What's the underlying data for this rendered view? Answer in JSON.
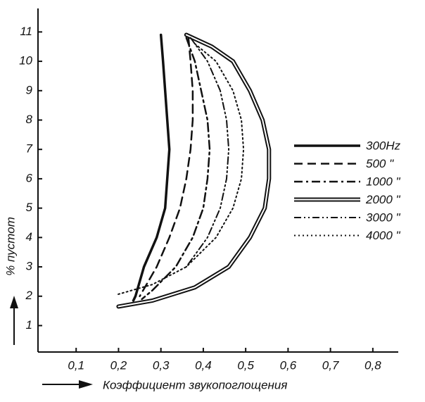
{
  "chart_data": {
    "type": "line",
    "x_label": "Коэффициент звукопоглощения",
    "y_label": "% пустот",
    "xlim": [
      0.01,
      0.86
    ],
    "ylim": [
      0.1,
      11.8
    ],
    "xticks": [
      {
        "value": 0.1,
        "label": "0,1"
      },
      {
        "value": 0.2,
        "label": "0,2"
      },
      {
        "value": 0.3,
        "label": "0,3"
      },
      {
        "value": 0.4,
        "label": "0,4"
      },
      {
        "value": 0.5,
        "label": "0,5"
      },
      {
        "value": 0.6,
        "label": "0,6"
      },
      {
        "value": 0.7,
        "label": "0,7"
      },
      {
        "value": 0.8,
        "label": "0,8"
      }
    ],
    "yticks": [
      1,
      2,
      3,
      4,
      5,
      6,
      7,
      8,
      9,
      10,
      11
    ],
    "series": [
      {
        "name": "300Hz",
        "color": "#111111",
        "line_style": "solid",
        "x": [
          0.3,
          0.305,
          0.31,
          0.315,
          0.32,
          0.315,
          0.31,
          0.29,
          0.26,
          0.24,
          0.235
        ],
        "values": [
          10.9,
          10.0,
          9.0,
          8.0,
          7.0,
          6.0,
          5.0,
          4.0,
          3.0,
          2.0,
          1.85
        ]
      },
      {
        "name": "500 \"",
        "color": "#111111",
        "line_style": "dashed",
        "x": [
          0.365,
          0.37,
          0.375,
          0.375,
          0.37,
          0.36,
          0.345,
          0.32,
          0.29,
          0.25
        ],
        "values": [
          10.8,
          10.0,
          9.0,
          8.0,
          7.0,
          6.0,
          5.0,
          4.0,
          3.0,
          2.0
        ]
      },
      {
        "name": "1000 \"",
        "color": "#111111",
        "line_style": "dashdot",
        "x": [
          0.36,
          0.38,
          0.395,
          0.41,
          0.415,
          0.41,
          0.4,
          0.375,
          0.335,
          0.28,
          0.255
        ],
        "values": [
          10.8,
          10.0,
          9.0,
          8.0,
          7.0,
          6.0,
          5.0,
          4.0,
          3.0,
          2.2,
          1.9
        ]
      },
      {
        "name": "2000 \"",
        "color": "#111111",
        "line_style": "double",
        "x": [
          0.36,
          0.42,
          0.47,
          0.51,
          0.54,
          0.555,
          0.555,
          0.545,
          0.51,
          0.46,
          0.38,
          0.28,
          0.2
        ],
        "values": [
          10.9,
          10.5,
          10.0,
          9.0,
          8.0,
          7.0,
          6.0,
          5.0,
          4.0,
          3.0,
          2.3,
          1.85,
          1.65
        ]
      },
      {
        "name": "3000 \"",
        "color": "#111111",
        "line_style": "dashdotdot",
        "x": [
          0.37,
          0.41,
          0.44,
          0.455,
          0.46,
          0.455,
          0.44,
          0.41,
          0.36
        ],
        "values": [
          10.8,
          10.0,
          9.0,
          8.0,
          7.0,
          6.0,
          5.0,
          4.0,
          3.0
        ]
      },
      {
        "name": "4000 \"",
        "color": "#111111",
        "line_style": "dotted",
        "x": [
          0.38,
          0.43,
          0.47,
          0.49,
          0.495,
          0.49,
          0.47,
          0.43,
          0.36,
          0.28,
          0.195
        ],
        "values": [
          10.6,
          10.0,
          9.0,
          8.0,
          7.0,
          6.0,
          5.0,
          4.0,
          3.0,
          2.4,
          2.05
        ]
      }
    ]
  }
}
